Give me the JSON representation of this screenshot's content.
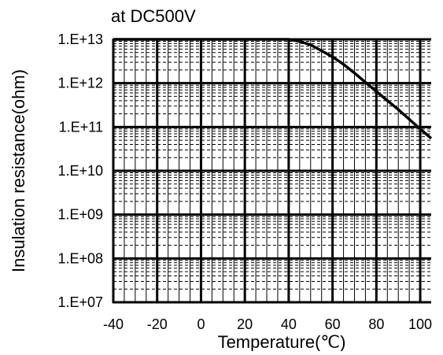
{
  "chart_data": {
    "type": "line",
    "title": "at DC500V",
    "xlabel": "Temperature(℃)",
    "ylabel": "Insulation resistance(ohm)",
    "xlim": [
      -40,
      105
    ],
    "ylim": [
      10000000,
      10000000000000
    ],
    "yscale": "log",
    "grid": true,
    "x_ticks": [
      -40,
      -20,
      0,
      20,
      40,
      60,
      80,
      100
    ],
    "y_ticks": [
      10000000,
      100000000,
      1000000000,
      10000000000,
      100000000000,
      1000000000000,
      10000000000000
    ],
    "x_tick_labels": [
      "-40",
      "-20",
      "0",
      "20",
      "40",
      "60",
      "80",
      "100"
    ],
    "y_tick_labels": [
      "1.E+07",
      "1.E+08",
      "1.E+09",
      "1.E+10",
      "1.E+11",
      "1.E+12",
      "1.E+13"
    ],
    "series": [
      {
        "x": [
          -40,
          40,
          45,
          50,
          55,
          60,
          65,
          70,
          75,
          80,
          85,
          90,
          95,
          100,
          105
        ],
        "y": [
          10000000000000,
          10000000000000,
          9000000000000,
          7500000000000,
          5500000000000,
          4000000000000,
          2700000000000,
          1700000000000,
          1050000000000,
          650000000000,
          400000000000,
          250000000000,
          150000000000,
          90000000000,
          55000000000
        ]
      }
    ],
    "colors": {
      "line": "#000000",
      "grid_major": "#000000",
      "grid_minor": "#000000"
    }
  }
}
